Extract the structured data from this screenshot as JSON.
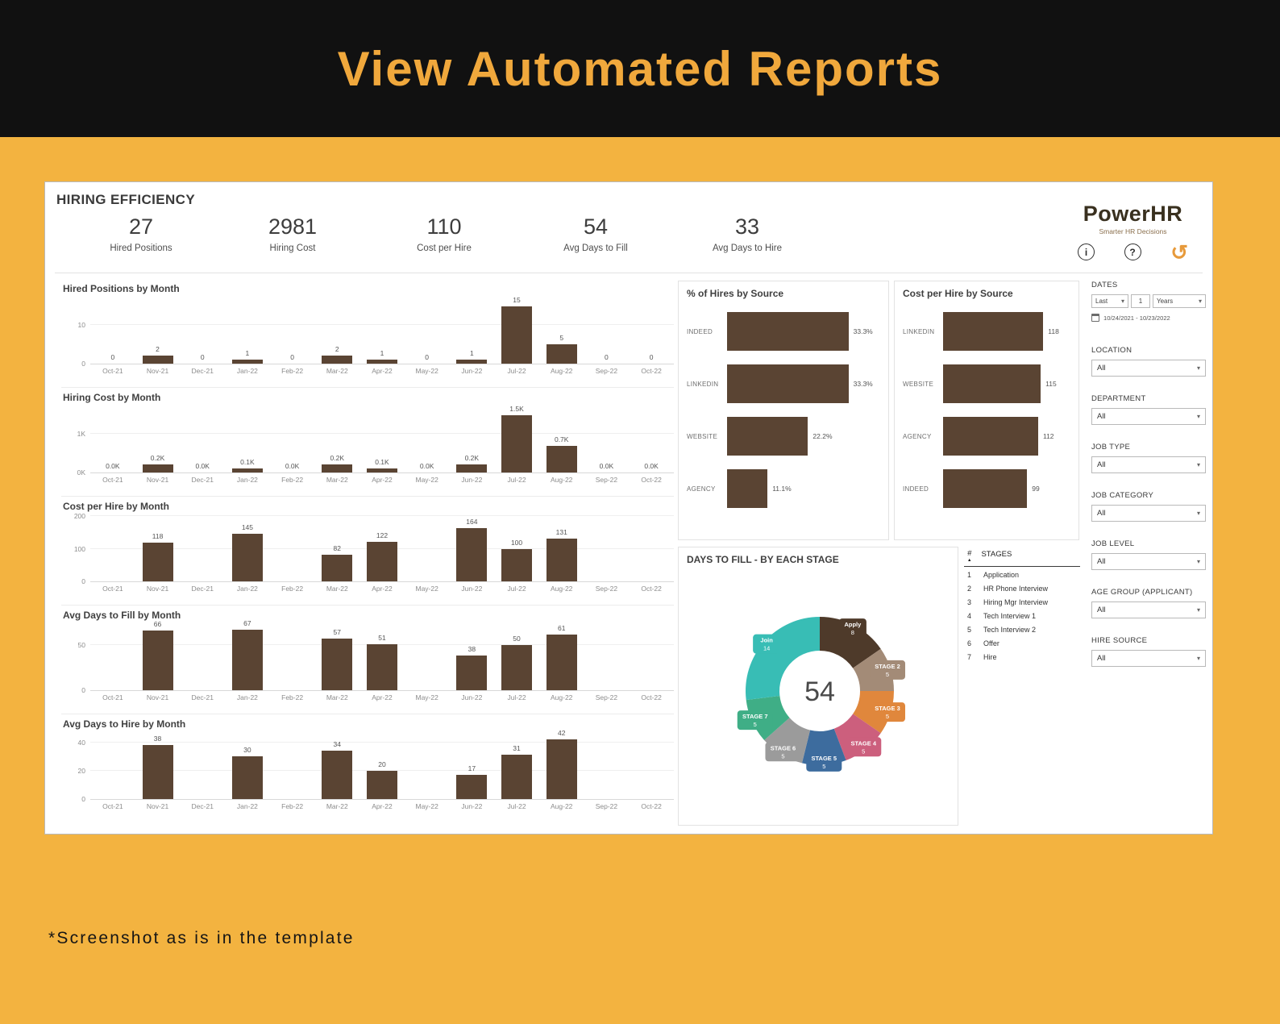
{
  "banner": {
    "title": "View Automated Reports"
  },
  "footer": {
    "note": "*Screenshot as is in the template"
  },
  "colors": {
    "accent": "#F0A83C",
    "bar": "#5A4433",
    "banner_bg": "#111111",
    "background": "#F3B340"
  },
  "dashboard": {
    "title": "HIRING EFFICIENCY",
    "brand": {
      "name": "PowerHR",
      "tagline": "Smarter HR Decisions"
    },
    "header_icons": {
      "info": "i",
      "help": "?",
      "reset": "↺"
    },
    "kpis": [
      {
        "value": "27",
        "label": "Hired Positions"
      },
      {
        "value": "2981",
        "label": "Hiring Cost"
      },
      {
        "value": "110",
        "label": "Cost per Hire"
      },
      {
        "value": "54",
        "label": "Avg Days to Fill"
      },
      {
        "value": "33",
        "label": "Avg Days to Hire"
      }
    ],
    "filters": {
      "dates": {
        "label": "DATES",
        "relative": [
          "Last",
          "1",
          "Years"
        ],
        "range": "10/24/2021 - 10/23/2022"
      },
      "selects": [
        {
          "label": "LOCATION",
          "value": "All"
        },
        {
          "label": "DEPARTMENT",
          "value": "All"
        },
        {
          "label": "JOB TYPE",
          "value": "All"
        },
        {
          "label": "JOB CATEGORY",
          "value": "All"
        },
        {
          "label": "JOB LEVEL",
          "value": "All"
        },
        {
          "label": "AGE GROUP (APPLICANT)",
          "value": "All"
        },
        {
          "label": "HIRE SOURCE",
          "value": "All"
        }
      ]
    },
    "stages_table": {
      "columns": [
        "#",
        "STAGES"
      ],
      "rows": [
        [
          "1",
          "Application"
        ],
        [
          "2",
          "HR Phone Interview"
        ],
        [
          "3",
          "Hiring Mgr Interview"
        ],
        [
          "4",
          "Tech Interview 1"
        ],
        [
          "5",
          "Tech Interview 2"
        ],
        [
          "6",
          "Offer"
        ],
        [
          "7",
          "Hire"
        ]
      ]
    }
  },
  "chart_data": [
    {
      "type": "bar",
      "title": "Hired Positions by Month",
      "categories": [
        "Oct-21",
        "Nov-21",
        "Dec-21",
        "Jan-22",
        "Feb-22",
        "Mar-22",
        "Apr-22",
        "May-22",
        "Jun-22",
        "Jul-22",
        "Aug-22",
        "Sep-22",
        "Oct-22"
      ],
      "values": [
        0,
        2,
        0,
        1,
        0,
        2,
        1,
        0,
        1,
        15,
        5,
        0,
        0
      ],
      "labels": [
        "0",
        "2",
        "0",
        "1",
        "0",
        "2",
        "1",
        "0",
        "1",
        "15",
        "5",
        "0",
        "0"
      ],
      "ylim": [
        0,
        17
      ],
      "yticks": [
        {
          "v": 0,
          "label": "0"
        },
        {
          "v": 10,
          "label": "10"
        }
      ]
    },
    {
      "type": "bar",
      "title": "Hiring Cost by Month",
      "categories": [
        "Oct-21",
        "Nov-21",
        "Dec-21",
        "Jan-22",
        "Feb-22",
        "Mar-22",
        "Apr-22",
        "May-22",
        "Jun-22",
        "Jul-22",
        "Aug-22",
        "Sep-22",
        "Oct-22"
      ],
      "values": [
        0,
        200,
        0,
        100,
        0,
        200,
        100,
        0,
        200,
        1500,
        700,
        0,
        0
      ],
      "labels": [
        "0.0K",
        "0.2K",
        "0.0K",
        "0.1K",
        "0.0K",
        "0.2K",
        "0.1K",
        "0.0K",
        "0.2K",
        "1.5K",
        "0.7K",
        "0.0K",
        "0.0K"
      ],
      "ylim": [
        0,
        1700
      ],
      "yticks": [
        {
          "v": 0,
          "label": "0K"
        },
        {
          "v": 1000,
          "label": "1K"
        }
      ]
    },
    {
      "type": "bar",
      "title": "Cost per Hire by Month",
      "categories": [
        "Oct-21",
        "Nov-21",
        "Dec-21",
        "Jan-22",
        "Feb-22",
        "Mar-22",
        "Apr-22",
        "May-22",
        "Jun-22",
        "Jul-22",
        "Aug-22",
        "Sep-22",
        "Oct-22"
      ],
      "values": [
        null,
        118,
        null,
        145,
        null,
        82,
        122,
        null,
        164,
        100,
        131,
        null,
        null
      ],
      "labels": [
        null,
        "118",
        null,
        "145",
        null,
        "82",
        "122",
        null,
        "164",
        "100",
        "131",
        null,
        null
      ],
      "ylim": [
        0,
        200
      ],
      "yticks": [
        {
          "v": 0,
          "label": "0"
        },
        {
          "v": 100,
          "label": "100"
        },
        {
          "v": 200,
          "label": "200"
        }
      ]
    },
    {
      "type": "bar",
      "title": "Avg Days to Fill by Month",
      "categories": [
        "Oct-21",
        "Nov-21",
        "Dec-21",
        "Jan-22",
        "Feb-22",
        "Mar-22",
        "Apr-22",
        "May-22",
        "Jun-22",
        "Jul-22",
        "Aug-22",
        "Sep-22",
        "Oct-22"
      ],
      "values": [
        null,
        66,
        null,
        67,
        null,
        57,
        51,
        null,
        38,
        50,
        61,
        null,
        null
      ],
      "labels": [
        null,
        "66",
        null,
        "67",
        null,
        "57",
        "51",
        null,
        "38",
        "50",
        "61",
        null,
        null
      ],
      "ylim": [
        0,
        72
      ],
      "yticks": [
        {
          "v": 0,
          "label": "0"
        },
        {
          "v": 50,
          "label": "50"
        }
      ]
    },
    {
      "type": "bar",
      "title": "Avg Days to Hire by Month",
      "categories": [
        "Oct-21",
        "Nov-21",
        "Dec-21",
        "Jan-22",
        "Feb-22",
        "Mar-22",
        "Apr-22",
        "May-22",
        "Jun-22",
        "Jul-22",
        "Aug-22",
        "Sep-22",
        "Oct-22"
      ],
      "values": [
        null,
        38,
        null,
        30,
        null,
        34,
        20,
        null,
        17,
        31,
        42,
        null,
        null
      ],
      "labels": [
        null,
        "38",
        null,
        "30",
        null,
        "34",
        "20",
        null,
        "17",
        "31",
        "42",
        null,
        null
      ],
      "ylim": [
        0,
        46
      ],
      "yticks": [
        {
          "v": 0,
          "label": "0"
        },
        {
          "v": 20,
          "label": "20"
        },
        {
          "v": 40,
          "label": "40"
        }
      ]
    },
    {
      "type": "hbar",
      "title": "% of Hires by Source",
      "categories": [
        "INDEED",
        "LINKEDIN",
        "WEBSITE",
        "AGENCY"
      ],
      "values": [
        33.3,
        33.3,
        22.2,
        11.1
      ],
      "labels": [
        "33.3%",
        "33.3%",
        "22.2%",
        "11.1%"
      ],
      "xlim": [
        0,
        42
      ]
    },
    {
      "type": "hbar",
      "title": "Cost per Hire by Source",
      "categories": [
        "LINKEDIN",
        "WEBSITE",
        "AGENCY",
        "INDEED"
      ],
      "values": [
        118,
        115,
        112,
        99
      ],
      "labels": [
        "118",
        "115",
        "112",
        "99"
      ],
      "xlim": [
        0,
        150
      ]
    },
    {
      "type": "donut",
      "title": "DAYS TO FILL - BY EACH STAGE",
      "center_value": "54",
      "segments": [
        {
          "label": "Apply",
          "value": 8,
          "color": "#4e3a2a"
        },
        {
          "label": "STAGE 2",
          "value": 5,
          "color": "#a38b77"
        },
        {
          "label": "STAGE 3",
          "value": 5,
          "color": "#e0873c"
        },
        {
          "label": "STAGE 4",
          "value": 5,
          "color": "#cc5f7d"
        },
        {
          "label": "STAGE 5",
          "value": 5,
          "color": "#3d6c9e"
        },
        {
          "label": "STAGE 6",
          "value": 5,
          "color": "#9b9b9b"
        },
        {
          "label": "STAGE 7",
          "value": 5,
          "color": "#3fae86"
        },
        {
          "label": "Join",
          "value": 14,
          "color": "#38bdb5"
        }
      ]
    }
  ]
}
